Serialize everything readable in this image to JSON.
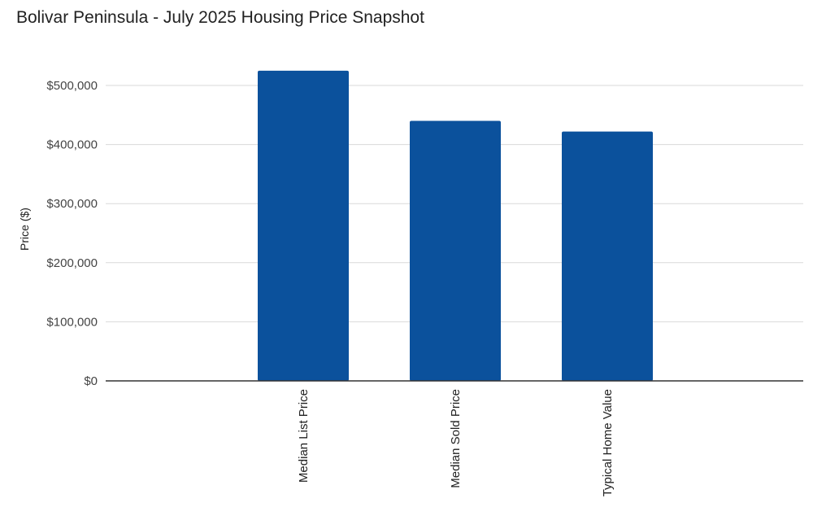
{
  "chart_data": {
    "type": "bar",
    "title": "Bolivar Peninsula - July 2025 Housing Price Snapshot",
    "xlabel": "",
    "ylabel": "Price ($)",
    "categories": [
      "Median List Price",
      "Median Sold Price",
      "Typical Home Value"
    ],
    "values": [
      525000,
      440000,
      422000
    ],
    "ylim": [
      0,
      500000
    ],
    "yticks": [
      0,
      100000,
      200000,
      300000,
      400000,
      500000
    ],
    "ytick_labels": [
      "$0",
      "$100,000",
      "$200,000",
      "$300,000",
      "$400,000",
      "$500,000"
    ],
    "grid": true,
    "legend": "none",
    "colors": {
      "bar": "#0B519C",
      "grid": "#D9D9D9",
      "baseline": "#333333"
    }
  }
}
